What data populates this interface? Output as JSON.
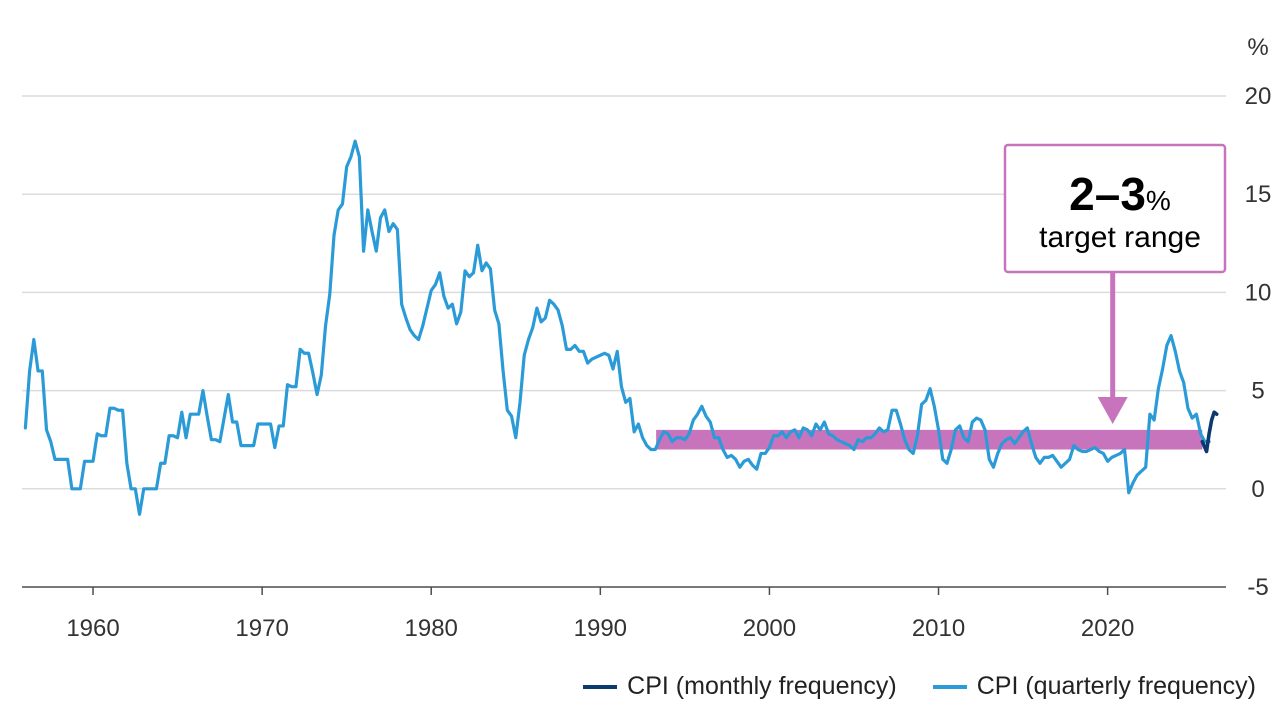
{
  "chart_data": {
    "type": "line",
    "unit_label": "%",
    "xlim": [
      1955.8,
      2027.0
    ],
    "ylim": [
      -5,
      20
    ],
    "x_ticks": [
      "1960",
      "1970",
      "1980",
      "1990",
      "2000",
      "2010",
      "2020"
    ],
    "y_ticks": [
      "-5",
      "0",
      "5",
      "10",
      "15",
      "20"
    ],
    "grid": "horizontal",
    "legend_position": "bottom-right",
    "target_band": {
      "low": 2,
      "high": 3,
      "x_start": 1993.3,
      "x_end": 2025.6,
      "color": "#c774bd"
    },
    "annotation": {
      "big_text": "2–3",
      "small_text": "%",
      "second_line": "target range",
      "arrow_x": 2020.3,
      "color": "#c774bd"
    },
    "series": [
      {
        "name": "CPI (quarterly frequency)",
        "color": "#2b9bd8",
        "points": [
          [
            1956.0,
            3.1
          ],
          [
            1956.25,
            6.0
          ],
          [
            1956.5,
            7.6
          ],
          [
            1956.75,
            6.0
          ],
          [
            1957.0,
            6.0
          ],
          [
            1957.25,
            3.0
          ],
          [
            1957.5,
            2.4
          ],
          [
            1957.75,
            1.5
          ],
          [
            1958.25,
            1.5
          ],
          [
            1958.5,
            1.5
          ],
          [
            1958.75,
            0.0
          ],
          [
            1959.0,
            0.0
          ],
          [
            1959.25,
            0.0
          ],
          [
            1959.5,
            1.4
          ],
          [
            1959.75,
            1.4
          ],
          [
            1960.0,
            1.4
          ],
          [
            1960.25,
            2.8
          ],
          [
            1960.5,
            2.7
          ],
          [
            1960.75,
            2.7
          ],
          [
            1961.0,
            4.1
          ],
          [
            1961.25,
            4.1
          ],
          [
            1961.5,
            4.0
          ],
          [
            1961.75,
            4.0
          ],
          [
            1962.0,
            1.3
          ],
          [
            1962.25,
            0.0
          ],
          [
            1962.5,
            0.0
          ],
          [
            1962.75,
            -1.3
          ],
          [
            1963.0,
            0.0
          ],
          [
            1963.25,
            0.0
          ],
          [
            1963.5,
            0.0
          ],
          [
            1963.75,
            0.0
          ],
          [
            1964.0,
            1.3
          ],
          [
            1964.25,
            1.3
          ],
          [
            1964.5,
            2.7
          ],
          [
            1964.75,
            2.7
          ],
          [
            1965.0,
            2.6
          ],
          [
            1965.25,
            3.9
          ],
          [
            1965.5,
            2.6
          ],
          [
            1965.75,
            3.8
          ],
          [
            1966.0,
            3.8
          ],
          [
            1966.25,
            3.8
          ],
          [
            1966.5,
            5.0
          ],
          [
            1966.75,
            3.7
          ],
          [
            1967.0,
            2.5
          ],
          [
            1967.25,
            2.5
          ],
          [
            1967.5,
            2.4
          ],
          [
            1967.75,
            3.6
          ],
          [
            1968.0,
            4.8
          ],
          [
            1968.25,
            3.4
          ],
          [
            1968.5,
            3.4
          ],
          [
            1968.75,
            2.2
          ],
          [
            1969.0,
            2.2
          ],
          [
            1969.25,
            2.2
          ],
          [
            1969.5,
            2.2
          ],
          [
            1969.75,
            3.3
          ],
          [
            1970.0,
            3.3
          ],
          [
            1970.25,
            3.3
          ],
          [
            1970.5,
            3.3
          ],
          [
            1970.75,
            2.1
          ],
          [
            1971.0,
            3.2
          ],
          [
            1971.25,
            3.2
          ],
          [
            1971.5,
            5.3
          ],
          [
            1971.75,
            5.2
          ],
          [
            1972.0,
            5.2
          ],
          [
            1972.25,
            7.1
          ],
          [
            1972.5,
            6.9
          ],
          [
            1972.75,
            6.9
          ],
          [
            1973.0,
            5.9
          ],
          [
            1973.25,
            4.8
          ],
          [
            1973.5,
            5.8
          ],
          [
            1973.75,
            8.3
          ],
          [
            1974.0,
            9.9
          ],
          [
            1974.25,
            12.9
          ],
          [
            1974.5,
            14.2
          ],
          [
            1974.75,
            14.5
          ],
          [
            1975.0,
            16.4
          ],
          [
            1975.25,
            16.9
          ],
          [
            1975.5,
            17.7
          ],
          [
            1975.75,
            16.9
          ],
          [
            1976.0,
            12.1
          ],
          [
            1976.25,
            14.2
          ],
          [
            1976.5,
            13.1
          ],
          [
            1976.75,
            12.1
          ],
          [
            1977.0,
            13.8
          ],
          [
            1977.25,
            14.2
          ],
          [
            1977.5,
            13.1
          ],
          [
            1977.75,
            13.5
          ],
          [
            1978.0,
            13.2
          ],
          [
            1978.25,
            9.4
          ],
          [
            1978.5,
            8.7
          ],
          [
            1978.75,
            8.1
          ],
          [
            1979.0,
            7.8
          ],
          [
            1979.25,
            7.6
          ],
          [
            1979.5,
            8.3
          ],
          [
            1979.75,
            9.2
          ],
          [
            1980.0,
            10.1
          ],
          [
            1980.25,
            10.4
          ],
          [
            1980.5,
            11.0
          ],
          [
            1980.75,
            9.8
          ],
          [
            1981.0,
            9.2
          ],
          [
            1981.25,
            9.4
          ],
          [
            1981.5,
            8.4
          ],
          [
            1981.75,
            9.0
          ],
          [
            1982.0,
            11.1
          ],
          [
            1982.25,
            10.8
          ],
          [
            1982.5,
            11.0
          ],
          [
            1982.75,
            12.4
          ],
          [
            1983.0,
            11.1
          ],
          [
            1983.25,
            11.5
          ],
          [
            1983.5,
            11.2
          ],
          [
            1983.75,
            9.1
          ],
          [
            1984.0,
            8.4
          ],
          [
            1984.25,
            6.0
          ],
          [
            1984.5,
            4.0
          ],
          [
            1984.75,
            3.7
          ],
          [
            1985.0,
            2.6
          ],
          [
            1985.25,
            4.4
          ],
          [
            1985.5,
            6.8
          ],
          [
            1985.75,
            7.6
          ],
          [
            1986.0,
            8.2
          ],
          [
            1986.25,
            9.2
          ],
          [
            1986.5,
            8.5
          ],
          [
            1986.75,
            8.7
          ],
          [
            1987.0,
            9.6
          ],
          [
            1987.25,
            9.4
          ],
          [
            1987.5,
            9.1
          ],
          [
            1987.75,
            8.3
          ],
          [
            1988.0,
            7.1
          ],
          [
            1988.25,
            7.1
          ],
          [
            1988.5,
            7.3
          ],
          [
            1988.75,
            7.0
          ],
          [
            1989.0,
            7.0
          ],
          [
            1989.25,
            6.4
          ],
          [
            1989.5,
            6.6
          ],
          [
            1989.75,
            6.7
          ],
          [
            1990.0,
            6.8
          ],
          [
            1990.25,
            6.9
          ],
          [
            1990.5,
            6.8
          ],
          [
            1990.75,
            6.1
          ],
          [
            1991.0,
            7.0
          ],
          [
            1991.25,
            5.2
          ],
          [
            1991.5,
            4.4
          ],
          [
            1991.75,
            4.6
          ],
          [
            1992.0,
            2.9
          ],
          [
            1992.25,
            3.3
          ],
          [
            1992.5,
            2.6
          ],
          [
            1992.75,
            2.2
          ],
          [
            1993.0,
            2.0
          ],
          [
            1993.25,
            2.0
          ],
          [
            1993.5,
            2.5
          ],
          [
            1993.75,
            2.9
          ],
          [
            1994.0,
            2.8
          ],
          [
            1994.25,
            2.4
          ],
          [
            1994.5,
            2.6
          ],
          [
            1994.75,
            2.6
          ],
          [
            1995.0,
            2.5
          ],
          [
            1995.25,
            2.8
          ],
          [
            1995.5,
            3.5
          ],
          [
            1995.75,
            3.8
          ],
          [
            1996.0,
            4.2
          ],
          [
            1996.25,
            3.7
          ],
          [
            1996.5,
            3.4
          ],
          [
            1996.75,
            2.6
          ],
          [
            1997.0,
            2.6
          ],
          [
            1997.25,
            2.0
          ],
          [
            1997.5,
            1.6
          ],
          [
            1997.75,
            1.7
          ],
          [
            1998.0,
            1.5
          ],
          [
            1998.25,
            1.1
          ],
          [
            1998.5,
            1.4
          ],
          [
            1998.75,
            1.5
          ],
          [
            1999.0,
            1.2
          ],
          [
            1999.25,
            1.0
          ],
          [
            1999.5,
            1.8
          ],
          [
            1999.75,
            1.8
          ],
          [
            2000.0,
            2.1
          ],
          [
            2000.25,
            2.7
          ],
          [
            2000.5,
            2.7
          ],
          [
            2000.75,
            2.9
          ],
          [
            2001.0,
            2.6
          ],
          [
            2001.25,
            2.9
          ],
          [
            2001.5,
            3.0
          ],
          [
            2001.75,
            2.6
          ],
          [
            2002.0,
            3.1
          ],
          [
            2002.25,
            3.0
          ],
          [
            2002.5,
            2.7
          ],
          [
            2002.75,
            3.3
          ],
          [
            2003.0,
            3.0
          ],
          [
            2003.25,
            3.4
          ],
          [
            2003.5,
            2.8
          ],
          [
            2003.75,
            2.7
          ],
          [
            2004.0,
            2.5
          ],
          [
            2004.25,
            2.4
          ],
          [
            2004.5,
            2.3
          ],
          [
            2004.75,
            2.2
          ],
          [
            2005.0,
            2.0
          ],
          [
            2005.25,
            2.5
          ],
          [
            2005.5,
            2.4
          ],
          [
            2005.75,
            2.6
          ],
          [
            2006.0,
            2.6
          ],
          [
            2006.25,
            2.8
          ],
          [
            2006.5,
            3.1
          ],
          [
            2006.75,
            2.9
          ],
          [
            2007.0,
            3.0
          ],
          [
            2007.25,
            4.0
          ],
          [
            2007.5,
            4.0
          ],
          [
            2007.75,
            3.3
          ],
          [
            2008.0,
            2.5
          ],
          [
            2008.25,
            2.0
          ],
          [
            2008.5,
            1.8
          ],
          [
            2008.75,
            2.7
          ],
          [
            2009.0,
            4.3
          ],
          [
            2009.25,
            4.5
          ],
          [
            2009.5,
            5.1
          ],
          [
            2009.75,
            4.2
          ],
          [
            2010.0,
            3.0
          ],
          [
            2010.25,
            1.5
          ],
          [
            2010.5,
            1.3
          ],
          [
            2010.75,
            2.0
          ],
          [
            2011.0,
            3.0
          ],
          [
            2011.25,
            3.2
          ],
          [
            2011.5,
            2.6
          ],
          [
            2011.75,
            2.4
          ],
          [
            2012.0,
            3.4
          ],
          [
            2012.25,
            3.6
          ],
          [
            2012.5,
            3.5
          ],
          [
            2012.75,
            3.0
          ],
          [
            2013.0,
            1.5
          ],
          [
            2013.25,
            1.1
          ],
          [
            2013.5,
            1.8
          ],
          [
            2013.75,
            2.3
          ],
          [
            2014.0,
            2.5
          ],
          [
            2014.25,
            2.6
          ],
          [
            2014.5,
            2.3
          ],
          [
            2014.75,
            2.6
          ],
          [
            2015.0,
            2.9
          ],
          [
            2015.25,
            3.1
          ],
          [
            2015.5,
            2.3
          ],
          [
            2015.75,
            1.6
          ],
          [
            2016.0,
            1.3
          ],
          [
            2016.25,
            1.6
          ],
          [
            2016.5,
            1.6
          ],
          [
            2016.75,
            1.7
          ],
          [
            2017.0,
            1.4
          ],
          [
            2017.25,
            1.1
          ],
          [
            2017.5,
            1.3
          ],
          [
            2017.75,
            1.5
          ],
          [
            2018.0,
            2.2
          ],
          [
            2018.25,
            2.0
          ],
          [
            2018.5,
            1.9
          ],
          [
            2018.75,
            1.9
          ],
          [
            2019.0,
            2.0
          ],
          [
            2019.25,
            2.1
          ],
          [
            2019.5,
            1.9
          ],
          [
            2019.75,
            1.8
          ],
          [
            2020.0,
            1.4
          ],
          [
            2020.25,
            1.6
          ],
          [
            2020.5,
            1.7
          ],
          [
            2020.75,
            1.8
          ],
          [
            2021.0,
            2.0
          ],
          [
            2021.25,
            -0.2
          ],
          [
            2021.5,
            0.3
          ],
          [
            2021.75,
            0.7
          ],
          [
            2022.0,
            0.9
          ],
          [
            2022.25,
            1.1
          ],
          [
            2022.5,
            3.8
          ],
          [
            2022.75,
            3.5
          ],
          [
            2023.0,
            5.1
          ],
          [
            2023.25,
            6.1
          ],
          [
            2023.5,
            7.3
          ],
          [
            2023.75,
            7.8
          ],
          [
            2024.0,
            7.0
          ],
          [
            2024.25,
            6.0
          ],
          [
            2024.5,
            5.4
          ],
          [
            2024.75,
            4.1
          ],
          [
            2025.0,
            3.6
          ],
          [
            2025.25,
            3.8
          ],
          [
            2025.5,
            2.8
          ],
          [
            2025.75,
            2.4
          ],
          [
            2026.0,
            2.4
          ]
        ]
      },
      {
        "name": "CPI (monthly frequency)",
        "color": "#0d3a6e",
        "points": [
          [
            2025.6,
            2.4
          ],
          [
            2025.75,
            2.1
          ],
          [
            2025.85,
            1.9
          ],
          [
            2026.0,
            2.8
          ],
          [
            2026.15,
            3.5
          ],
          [
            2026.3,
            3.9
          ],
          [
            2026.45,
            3.8
          ]
        ]
      }
    ]
  }
}
